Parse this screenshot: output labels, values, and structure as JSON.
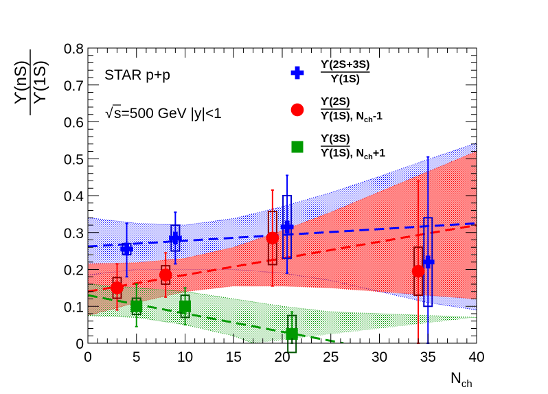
{
  "chart_data": {
    "type": "scatter",
    "title": "",
    "xlabel": "N",
    "xlabel_sub": "ch",
    "ylabel_num": "ϒ(nS)",
    "ylabel_den": "ϒ(1S)",
    "xlim": [
      0,
      40
    ],
    "ylim": [
      0,
      0.8
    ],
    "x_ticks": [
      0,
      5,
      10,
      15,
      20,
      25,
      30,
      35,
      40
    ],
    "x_tick_labels": [
      "0",
      "5",
      "10",
      "15",
      "20",
      "25",
      "30",
      "35",
      "40"
    ],
    "y_ticks": [
      0,
      0.1,
      0.2,
      0.3,
      0.4,
      0.5,
      0.6,
      0.7,
      0.8
    ],
    "y_tick_labels": [
      "0",
      "0.1",
      "0.2",
      "0.3",
      "0.4",
      "0.5",
      "0.6",
      "0.7",
      "0.8"
    ],
    "grid": false,
    "legend_position": "top-right",
    "annotations": {
      "experiment": "STAR p+p",
      "sqrt_symbol": "√",
      "energy": "s=500 GeV |y|<1"
    },
    "series": [
      {
        "key": "s2s3s",
        "legend_num": "ϒ(2S+3S)",
        "legend_den": "ϒ(1S)",
        "legend_suffix": "",
        "color": "#0000ff",
        "marker": "cross",
        "points": [
          {
            "x": 4,
            "y": 0.255,
            "stat_lo": 0.075,
            "stat_hi": 0.07,
            "sys": 0.015
          },
          {
            "x": 9,
            "y": 0.285,
            "stat_lo": 0.07,
            "stat_hi": 0.07,
            "sys": 0.035
          },
          {
            "x": 20.5,
            "y": 0.315,
            "stat_lo": 0.125,
            "stat_hi": 0.14,
            "sys": 0.085
          },
          {
            "x": 35,
            "y": 0.22,
            "stat_lo": 0.22,
            "stat_hi": 0.285,
            "sys": 0.12
          }
        ],
        "fit": {
          "x": [
            0,
            40
          ],
          "y": [
            0.262,
            0.325
          ]
        },
        "band_upper": {
          "x": [
            0,
            5,
            10,
            15,
            20,
            25,
            30,
            35,
            40
          ],
          "y": [
            0.34,
            0.325,
            0.32,
            0.338,
            0.37,
            0.408,
            0.452,
            0.498,
            0.543
          ]
        },
        "band_lower": {
          "x": [
            0,
            5,
            10,
            15,
            20,
            25,
            30,
            35,
            40
          ],
          "y": [
            0.185,
            0.2,
            0.2,
            0.2,
            0.19,
            0.17,
            0.14,
            0.11,
            0.09
          ]
        }
      },
      {
        "key": "s2s",
        "legend_num": "ϒ(2S)",
        "legend_den": "ϒ(1S)",
        "legend_suffix": ", N",
        "legend_suffix_sub": "ch",
        "legend_shift": "-1",
        "color": "#ff0000",
        "marker": "circle",
        "points": [
          {
            "x": 3,
            "y": 0.15,
            "stat_lo": 0.06,
            "stat_hi": 0.065,
            "sys": 0.028
          },
          {
            "x": 8,
            "y": 0.185,
            "stat_lo": 0.06,
            "stat_hi": 0.06,
            "sys": 0.025
          },
          {
            "x": 19,
            "y": 0.285,
            "stat_lo": 0.13,
            "stat_hi": 0.13,
            "sys": 0.072
          },
          {
            "x": 34,
            "y": 0.195,
            "stat_lo": 0.195,
            "stat_hi": 0.245,
            "sys": 0.065
          }
        ],
        "fit": {
          "x": [
            0,
            40
          ],
          "y": [
            0.14,
            0.32
          ]
        },
        "band_upper": {
          "x": [
            0,
            5,
            10,
            15,
            20,
            25,
            30,
            35,
            40
          ],
          "y": [
            0.215,
            0.218,
            0.23,
            0.26,
            0.305,
            0.355,
            0.41,
            0.465,
            0.52
          ]
        },
        "band_lower": {
          "x": [
            0,
            5,
            10,
            15,
            20,
            25,
            30,
            35,
            40
          ],
          "y": [
            0.075,
            0.11,
            0.14,
            0.155,
            0.155,
            0.15,
            0.14,
            0.13,
            0.12
          ]
        }
      },
      {
        "key": "s3s",
        "legend_num": "ϒ(3S)",
        "legend_den": "ϒ(1S)",
        "legend_suffix": ", N",
        "legend_suffix_sub": "ch",
        "legend_shift": "+1",
        "color": "#009900",
        "marker": "square",
        "points": [
          {
            "x": 5,
            "y": 0.1,
            "stat_lo": 0.055,
            "stat_hi": 0.06,
            "sys": 0.022
          },
          {
            "x": 10,
            "y": 0.1,
            "stat_lo": 0.05,
            "stat_hi": 0.05,
            "sys": 0.03
          },
          {
            "x": 21,
            "y": 0.025,
            "stat_lo": 0.025,
            "stat_hi": 0.06,
            "sys": 0.05
          }
        ],
        "fit": {
          "x": [
            0,
            26.3
          ],
          "y": [
            0.13,
            0.0
          ]
        },
        "band_upper": {
          "x": [
            0,
            5,
            10,
            15,
            20,
            25,
            30,
            35,
            40
          ],
          "y": [
            0.16,
            0.15,
            0.14,
            0.12,
            0.1,
            0.085,
            0.08,
            0.075,
            0.07
          ]
        },
        "band_lower": {
          "x": [
            0,
            5,
            10,
            15,
            17
          ],
          "y": [
            0.075,
            0.07,
            0.05,
            0.02,
            0.0
          ]
        }
      }
    ]
  }
}
